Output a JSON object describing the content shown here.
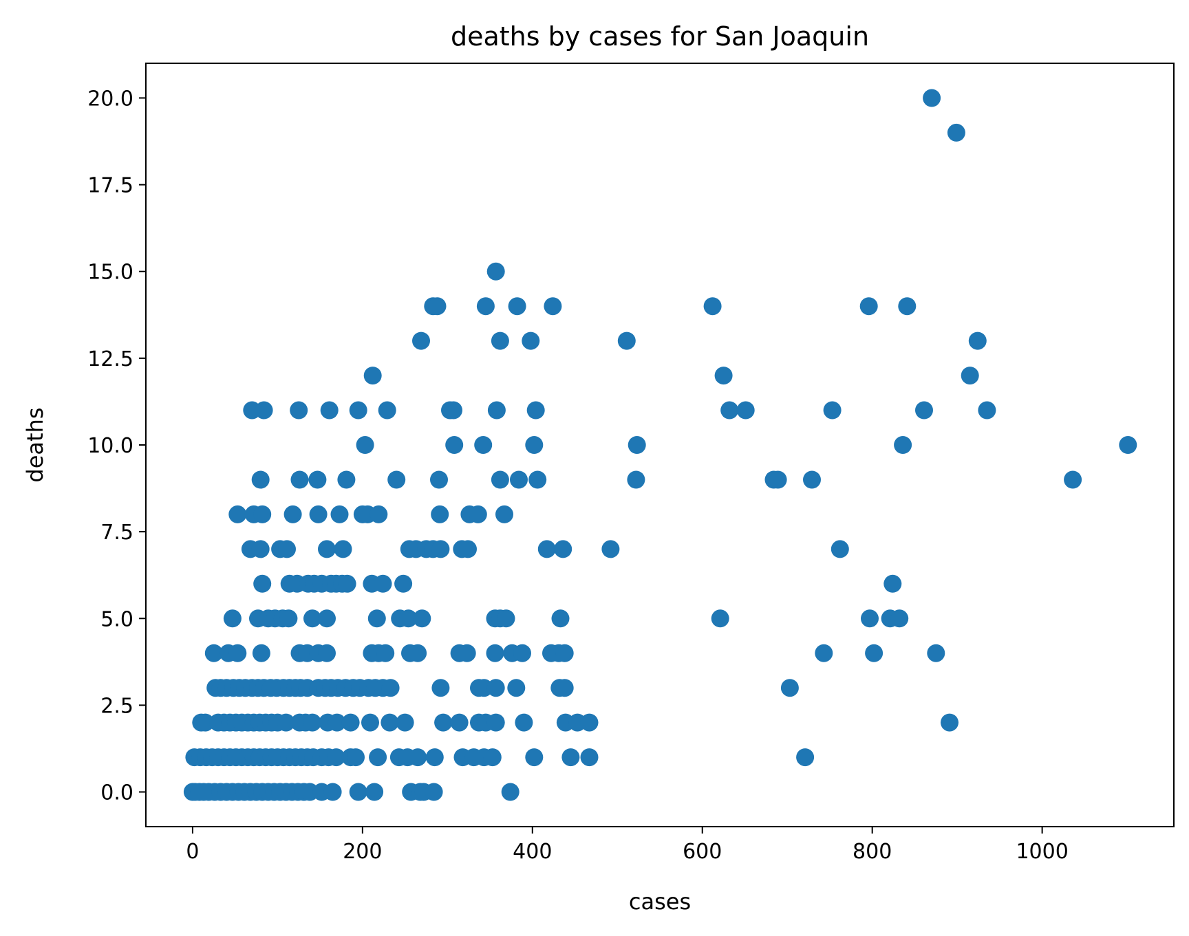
{
  "chart_data": {
    "type": "scatter",
    "title": "deaths by cases for San Joaquin",
    "xlabel": "cases",
    "ylabel": "deaths",
    "xlim": [
      -55,
      1155
    ],
    "ylim": [
      -1,
      21
    ],
    "xticks": [
      0,
      200,
      400,
      600,
      800,
      1000
    ],
    "xtick_labels": [
      "0",
      "200",
      "400",
      "600",
      "800",
      "1000"
    ],
    "yticks": [
      0,
      2.5,
      5,
      7.5,
      10,
      12.5,
      15,
      17.5,
      20
    ],
    "ytick_labels": [
      "0.0",
      "2.5",
      "5.0",
      "7.5",
      "10.0",
      "12.5",
      "15.0",
      "17.5",
      "20.0"
    ],
    "grid": false,
    "legend": "none",
    "marker_color": "#1f77b4",
    "points": [
      [
        870,
        20
      ],
      [
        899,
        19
      ],
      [
        357,
        15
      ],
      [
        283,
        14
      ],
      [
        288,
        14
      ],
      [
        345,
        14
      ],
      [
        382,
        14
      ],
      [
        424,
        14
      ],
      [
        612,
        14
      ],
      [
        796,
        14
      ],
      [
        841,
        14
      ],
      [
        269,
        13
      ],
      [
        362,
        13
      ],
      [
        398,
        13
      ],
      [
        511,
        13
      ],
      [
        924,
        13
      ],
      [
        212,
        12
      ],
      [
        625,
        12
      ],
      [
        915,
        12
      ],
      [
        70,
        11
      ],
      [
        84,
        11
      ],
      [
        125,
        11
      ],
      [
        161,
        11
      ],
      [
        195,
        11
      ],
      [
        229,
        11
      ],
      [
        303,
        11
      ],
      [
        307,
        11
      ],
      [
        358,
        11
      ],
      [
        404,
        11
      ],
      [
        632,
        11
      ],
      [
        651,
        11
      ],
      [
        753,
        11
      ],
      [
        861,
        11
      ],
      [
        935,
        11
      ],
      [
        203,
        10
      ],
      [
        308,
        10
      ],
      [
        342,
        10
      ],
      [
        402,
        10
      ],
      [
        523,
        10
      ],
      [
        836,
        10
      ],
      [
        1101,
        10
      ],
      [
        80,
        9
      ],
      [
        126,
        9
      ],
      [
        147,
        9
      ],
      [
        181,
        9
      ],
      [
        240,
        9
      ],
      [
        290,
        9
      ],
      [
        362,
        9
      ],
      [
        384,
        9
      ],
      [
        406,
        9
      ],
      [
        522,
        9
      ],
      [
        684,
        9
      ],
      [
        689,
        9
      ],
      [
        729,
        9
      ],
      [
        1036,
        9
      ],
      [
        53,
        8
      ],
      [
        72,
        8
      ],
      [
        82,
        8
      ],
      [
        118,
        8
      ],
      [
        148,
        8
      ],
      [
        173,
        8
      ],
      [
        200,
        8
      ],
      [
        206,
        8
      ],
      [
        219,
        8
      ],
      [
        291,
        8
      ],
      [
        326,
        8
      ],
      [
        336,
        8
      ],
      [
        367,
        8
      ],
      [
        68,
        7
      ],
      [
        80,
        7
      ],
      [
        103,
        7
      ],
      [
        111,
        7
      ],
      [
        158,
        7
      ],
      [
        177,
        7
      ],
      [
        255,
        7
      ],
      [
        263,
        7
      ],
      [
        275,
        7
      ],
      [
        283,
        7
      ],
      [
        292,
        7
      ],
      [
        317,
        7
      ],
      [
        324,
        7
      ],
      [
        417,
        7
      ],
      [
        436,
        7
      ],
      [
        492,
        7
      ],
      [
        762,
        7
      ],
      [
        82,
        6
      ],
      [
        114,
        6
      ],
      [
        123,
        6
      ],
      [
        136,
        6
      ],
      [
        143,
        6
      ],
      [
        152,
        6
      ],
      [
        163,
        6
      ],
      [
        169,
        6
      ],
      [
        176,
        6
      ],
      [
        182,
        6
      ],
      [
        211,
        6
      ],
      [
        224,
        6
      ],
      [
        248,
        6
      ],
      [
        824,
        6
      ],
      [
        47,
        5
      ],
      [
        77,
        5
      ],
      [
        89,
        5
      ],
      [
        97,
        5
      ],
      [
        106,
        5
      ],
      [
        113,
        5
      ],
      [
        141,
        5
      ],
      [
        158,
        5
      ],
      [
        217,
        5
      ],
      [
        244,
        5
      ],
      [
        254,
        5
      ],
      [
        270,
        5
      ],
      [
        356,
        5
      ],
      [
        362,
        5
      ],
      [
        369,
        5
      ],
      [
        433,
        5
      ],
      [
        621,
        5
      ],
      [
        797,
        5
      ],
      [
        821,
        5
      ],
      [
        832,
        5
      ],
      [
        25,
        4
      ],
      [
        42,
        4
      ],
      [
        53,
        4
      ],
      [
        81,
        4
      ],
      [
        126,
        4
      ],
      [
        135,
        4
      ],
      [
        148,
        4
      ],
      [
        158,
        4
      ],
      [
        211,
        4
      ],
      [
        219,
        4
      ],
      [
        227,
        4
      ],
      [
        256,
        4
      ],
      [
        265,
        4
      ],
      [
        314,
        4
      ],
      [
        323,
        4
      ],
      [
        356,
        4
      ],
      [
        376,
        4
      ],
      [
        388,
        4
      ],
      [
        422,
        4
      ],
      [
        431,
        4
      ],
      [
        438,
        4
      ],
      [
        743,
        4
      ],
      [
        802,
        4
      ],
      [
        875,
        4
      ],
      [
        27,
        3
      ],
      [
        33,
        3
      ],
      [
        40,
        3
      ],
      [
        48,
        3
      ],
      [
        55,
        3
      ],
      [
        62,
        3
      ],
      [
        70,
        3
      ],
      [
        77,
        3
      ],
      [
        84,
        3
      ],
      [
        92,
        3
      ],
      [
        99,
        3
      ],
      [
        107,
        3
      ],
      [
        114,
        3
      ],
      [
        121,
        3
      ],
      [
        127,
        3
      ],
      [
        135,
        3
      ],
      [
        148,
        3
      ],
      [
        156,
        3
      ],
      [
        163,
        3
      ],
      [
        171,
        3
      ],
      [
        180,
        3
      ],
      [
        189,
        3
      ],
      [
        197,
        3
      ],
      [
        207,
        3
      ],
      [
        215,
        3
      ],
      [
        224,
        3
      ],
      [
        233,
        3
      ],
      [
        292,
        3
      ],
      [
        337,
        3
      ],
      [
        343,
        3
      ],
      [
        357,
        3
      ],
      [
        381,
        3
      ],
      [
        432,
        3
      ],
      [
        438,
        3
      ],
      [
        703,
        3
      ],
      [
        10,
        2
      ],
      [
        15,
        2
      ],
      [
        30,
        2
      ],
      [
        37,
        2
      ],
      [
        44,
        2
      ],
      [
        51,
        2
      ],
      [
        58,
        2
      ],
      [
        65,
        2
      ],
      [
        72,
        2
      ],
      [
        79,
        2
      ],
      [
        86,
        2
      ],
      [
        93,
        2
      ],
      [
        100,
        2
      ],
      [
        110,
        2
      ],
      [
        126,
        2
      ],
      [
        133,
        2
      ],
      [
        141,
        2
      ],
      [
        159,
        2
      ],
      [
        170,
        2
      ],
      [
        186,
        2
      ],
      [
        209,
        2
      ],
      [
        232,
        2
      ],
      [
        250,
        2
      ],
      [
        295,
        2
      ],
      [
        314,
        2
      ],
      [
        337,
        2
      ],
      [
        345,
        2
      ],
      [
        357,
        2
      ],
      [
        390,
        2
      ],
      [
        439,
        2
      ],
      [
        453,
        2
      ],
      [
        467,
        2
      ],
      [
        891,
        2
      ],
      [
        2,
        1
      ],
      [
        9,
        1
      ],
      [
        16,
        1
      ],
      [
        23,
        1
      ],
      [
        30,
        1
      ],
      [
        37,
        1
      ],
      [
        44,
        1
      ],
      [
        51,
        1
      ],
      [
        58,
        1
      ],
      [
        65,
        1
      ],
      [
        72,
        1
      ],
      [
        79,
        1
      ],
      [
        86,
        1
      ],
      [
        93,
        1
      ],
      [
        100,
        1
      ],
      [
        107,
        1
      ],
      [
        114,
        1
      ],
      [
        121,
        1
      ],
      [
        128,
        1
      ],
      [
        135,
        1
      ],
      [
        142,
        1
      ],
      [
        152,
        1
      ],
      [
        160,
        1
      ],
      [
        169,
        1
      ],
      [
        186,
        1
      ],
      [
        192,
        1
      ],
      [
        218,
        1
      ],
      [
        243,
        1
      ],
      [
        253,
        1
      ],
      [
        265,
        1
      ],
      [
        285,
        1
      ],
      [
        318,
        1
      ],
      [
        331,
        1
      ],
      [
        343,
        1
      ],
      [
        353,
        1
      ],
      [
        402,
        1
      ],
      [
        445,
        1
      ],
      [
        467,
        1
      ],
      [
        721,
        1
      ],
      [
        0,
        0
      ],
      [
        3,
        0
      ],
      [
        8,
        0
      ],
      [
        13,
        0
      ],
      [
        19,
        0
      ],
      [
        26,
        0
      ],
      [
        33,
        0
      ],
      [
        40,
        0
      ],
      [
        47,
        0
      ],
      [
        54,
        0
      ],
      [
        61,
        0
      ],
      [
        68,
        0
      ],
      [
        75,
        0
      ],
      [
        82,
        0
      ],
      [
        89,
        0
      ],
      [
        96,
        0
      ],
      [
        103,
        0
      ],
      [
        110,
        0
      ],
      [
        117,
        0
      ],
      [
        124,
        0
      ],
      [
        131,
        0
      ],
      [
        138,
        0
      ],
      [
        152,
        0
      ],
      [
        165,
        0
      ],
      [
        195,
        0
      ],
      [
        214,
        0
      ],
      [
        257,
        0
      ],
      [
        268,
        0
      ],
      [
        272,
        0
      ],
      [
        284,
        0
      ],
      [
        374,
        0
      ]
    ]
  }
}
